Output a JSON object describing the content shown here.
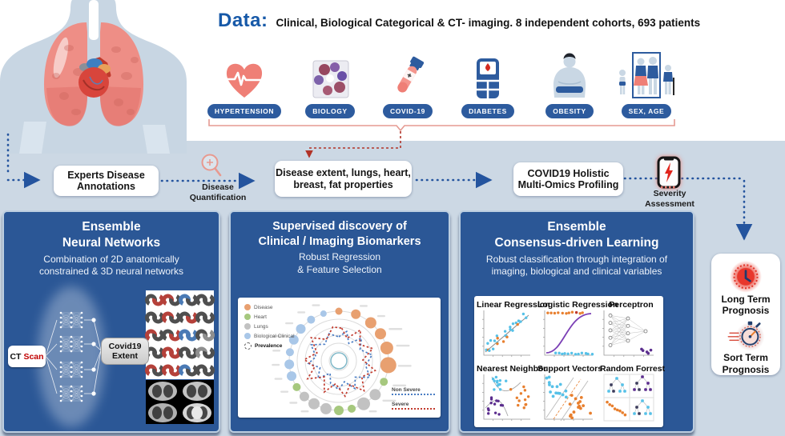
{
  "header": {
    "data_label": "Data:",
    "data_text": "Clinical, Biological Categorical & CT- imaging. 8 independent cohorts, 693 patients"
  },
  "cohorts": {
    "items": [
      {
        "label": "HYPERTENSION",
        "icon": "heart-pulse-icon"
      },
      {
        "label": "BIOLOGY",
        "icon": "protein-molecule-icon"
      },
      {
        "label": "COVID-19",
        "icon": "test-tube-icon"
      },
      {
        "label": "DIABETES",
        "icon": "glucose-meter-icon"
      },
      {
        "label": "OBESITY",
        "icon": "body-silhouette-icon"
      },
      {
        "label": "SEX, AGE",
        "icon": "family-icon"
      }
    ]
  },
  "flow": {
    "experts_line1": "Experts Disease",
    "experts_line2": "Annotations",
    "quantification_line1": "Disease",
    "quantification_line2": "Quantification",
    "extent_line1": "Disease extent, lungs, heart,",
    "extent_line2": "breast, fat properties",
    "profiling_line1": "COVID19 Holistic",
    "profiling_line2": "Multi-Omics Profiling",
    "severity_line1": "Severity",
    "severity_line2": "Assessment"
  },
  "panel_nn": {
    "title_line1": "Ensemble",
    "title_line2": "Neural Networks",
    "subtitle_line1": "Combination of 2D anatomically",
    "subtitle_line2": "constrained & 3D neural networks",
    "ct_prefix": "CT",
    "ct_suffix": "Scan",
    "extent_line1": "Covid19",
    "extent_line2": "Extent"
  },
  "panel_biomarkers": {
    "title_line1": "Supervised discovery of",
    "title_line2": "Clinical / Imaging Biomarkers",
    "subtitle_line1": "Robust Regression",
    "subtitle_line2": "& Feature Selection",
    "legend": [
      {
        "label": "Disease",
        "color": "#e8a070"
      },
      {
        "label": "Heart",
        "color": "#a6c87e"
      },
      {
        "label": "Lungs",
        "color": "#c2c2c2"
      },
      {
        "label": "Biological Clinical",
        "color": "#a9c7e8"
      },
      {
        "label": "Prevalence",
        "color": "dashed"
      }
    ],
    "series_legend": [
      {
        "label": "Non Severe",
        "color": "#4a7dc4"
      },
      {
        "label": "Severe",
        "color": "#c23b2e"
      }
    ]
  },
  "panel_ensemble": {
    "title_line1": "Ensemble",
    "title_line2": "Consensus-driven Learning",
    "subtitle_line1": "Robust classification through integration of",
    "subtitle_line2": "imaging, biological and clinical variables",
    "classifiers": [
      "Linear Regression",
      "Logistic Regression",
      "Perceptron",
      "Nearest Neighbor",
      "Support Vectors",
      "Random Forrest"
    ]
  },
  "prognosis": {
    "long_line1": "Long Term",
    "long_line2": "Prognosis",
    "short_line1": "Sort Term",
    "short_line2": "Prognosis"
  },
  "colors": {
    "accent_blue": "#1759a8",
    "panel_blue": "#2b5796",
    "badge_navy": "#2d5b9e",
    "arrow_blue": "#24549e",
    "alert_red": "#c23b2e",
    "salmon": "#ef837a",
    "background": "#ccd8e4"
  }
}
